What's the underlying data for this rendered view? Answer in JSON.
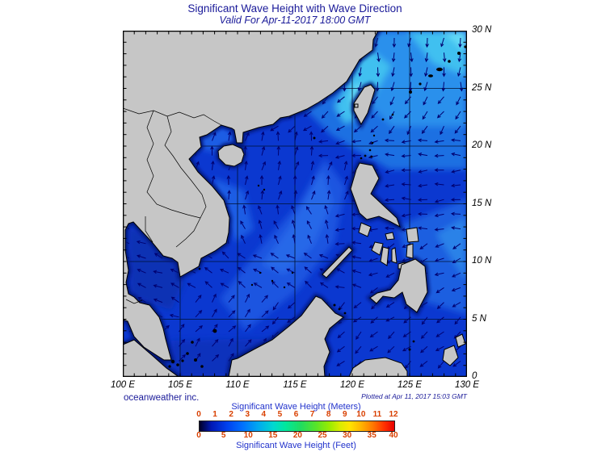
{
  "title": "Significant Wave Height with Wave Direction",
  "subtitle": "Valid For Apr-11-2017 18:00 GMT",
  "credit": "oceanweather inc.",
  "plotted": "Plotted at Apr 11, 2017 15:03 GMT",
  "axes": {
    "lon": [
      {
        "v": 100,
        "label": "100 E"
      },
      {
        "v": 105,
        "label": "105 E"
      },
      {
        "v": 110,
        "label": "110 E"
      },
      {
        "v": 115,
        "label": "115 E"
      },
      {
        "v": 120,
        "label": "120 E"
      },
      {
        "v": 125,
        "label": "125 E"
      },
      {
        "v": 130,
        "label": "130 E"
      }
    ],
    "lat": [
      {
        "v": 30,
        "label": "30 N"
      },
      {
        "v": 25,
        "label": "25 N"
      },
      {
        "v": 20,
        "label": "20 N"
      },
      {
        "v": 15,
        "label": "15 N"
      },
      {
        "v": 10,
        "label": "10 N"
      },
      {
        "v": 5,
        "label": "5 N"
      },
      {
        "v": 0,
        "label": "0"
      }
    ],
    "lon_range": [
      100,
      130
    ],
    "lat_range": [
      0,
      30
    ],
    "grid_step_deg": 5,
    "minor_tick_step_deg": 1
  },
  "colorbar": {
    "title_meters": "Significant Wave Height (Meters)",
    "title_feet": "Significant Wave Height (Feet)",
    "meters": [
      0,
      1,
      2,
      3,
      4,
      5,
      6,
      7,
      8,
      9,
      10,
      11,
      12
    ],
    "feet": [
      0,
      5,
      10,
      15,
      20,
      25,
      30,
      35,
      40
    ],
    "max_meters": 12,
    "feet_per_meter": 3.28084,
    "stops": [
      [
        "#000028",
        0
      ],
      [
        "#0018b4",
        6
      ],
      [
        "#0040ee",
        14
      ],
      [
        "#0070ff",
        22
      ],
      [
        "#00a8f0",
        30
      ],
      [
        "#00d8d0",
        38
      ],
      [
        "#00e89e",
        44
      ],
      [
        "#20dc60",
        52
      ],
      [
        "#58e428",
        60
      ],
      [
        "#9cec00",
        67
      ],
      [
        "#d8ec00",
        72
      ],
      [
        "#ffe400",
        77
      ],
      [
        "#ffb400",
        83
      ],
      [
        "#ff7800",
        89
      ],
      [
        "#ff3000",
        95
      ],
      [
        "#e80000",
        100
      ]
    ]
  },
  "text_colors": {
    "title": "#1a1a99",
    "colorbar_numbers": "#d94000",
    "colorbar_labels": "#2233cc"
  },
  "map": {
    "colors": {
      "land": "#c6c6c6",
      "coast_stroke": "#000000",
      "ocean_base": "#0b38d0",
      "grid": "#001030",
      "arrow": "#000070",
      "frame": "#000000",
      "coast_shadow": "#001878"
    },
    "arrow_field": {
      "spacing_x": 20.5,
      "spacing_y": 18.2,
      "length": 11,
      "head": 4,
      "regions": [
        [
          116.5,
          130,
          24.5,
          30,
          -95
        ],
        [
          121,
          130,
          20.5,
          24.5,
          -125
        ],
        [
          113,
          121,
          20.5,
          25.5,
          -140
        ],
        [
          117.5,
          123,
          18.5,
          20.5,
          -170
        ],
        [
          121.5,
          130,
          12.5,
          18.5,
          -177
        ],
        [
          103,
          119.5,
          14.5,
          18.5,
          78
        ],
        [
          103,
          117.5,
          18.5,
          21.5,
          80
        ],
        [
          104,
          113,
          20.5,
          22.5,
          95
        ],
        [
          106,
          119,
          11.5,
          14.5,
          110
        ],
        [
          105,
          118.5,
          7.5,
          11.5,
          147
        ],
        [
          99,
          106,
          4.5,
          14.5,
          158
        ],
        [
          103,
          113.5,
          0,
          7.5,
          52
        ],
        [
          99,
          103,
          0,
          4.5,
          40
        ],
        [
          113.5,
          121.5,
          0,
          7.5,
          -135
        ],
        [
          121.5,
          130,
          7,
          12.5,
          -155
        ],
        [
          121.5,
          130,
          0,
          7,
          -140
        ],
        [
          119.5,
          121.5,
          11.5,
          18.5,
          -175
        ],
        [
          117,
          121.5,
          7.5,
          11.5,
          160
        ]
      ],
      "default_angle": -178
    }
  }
}
